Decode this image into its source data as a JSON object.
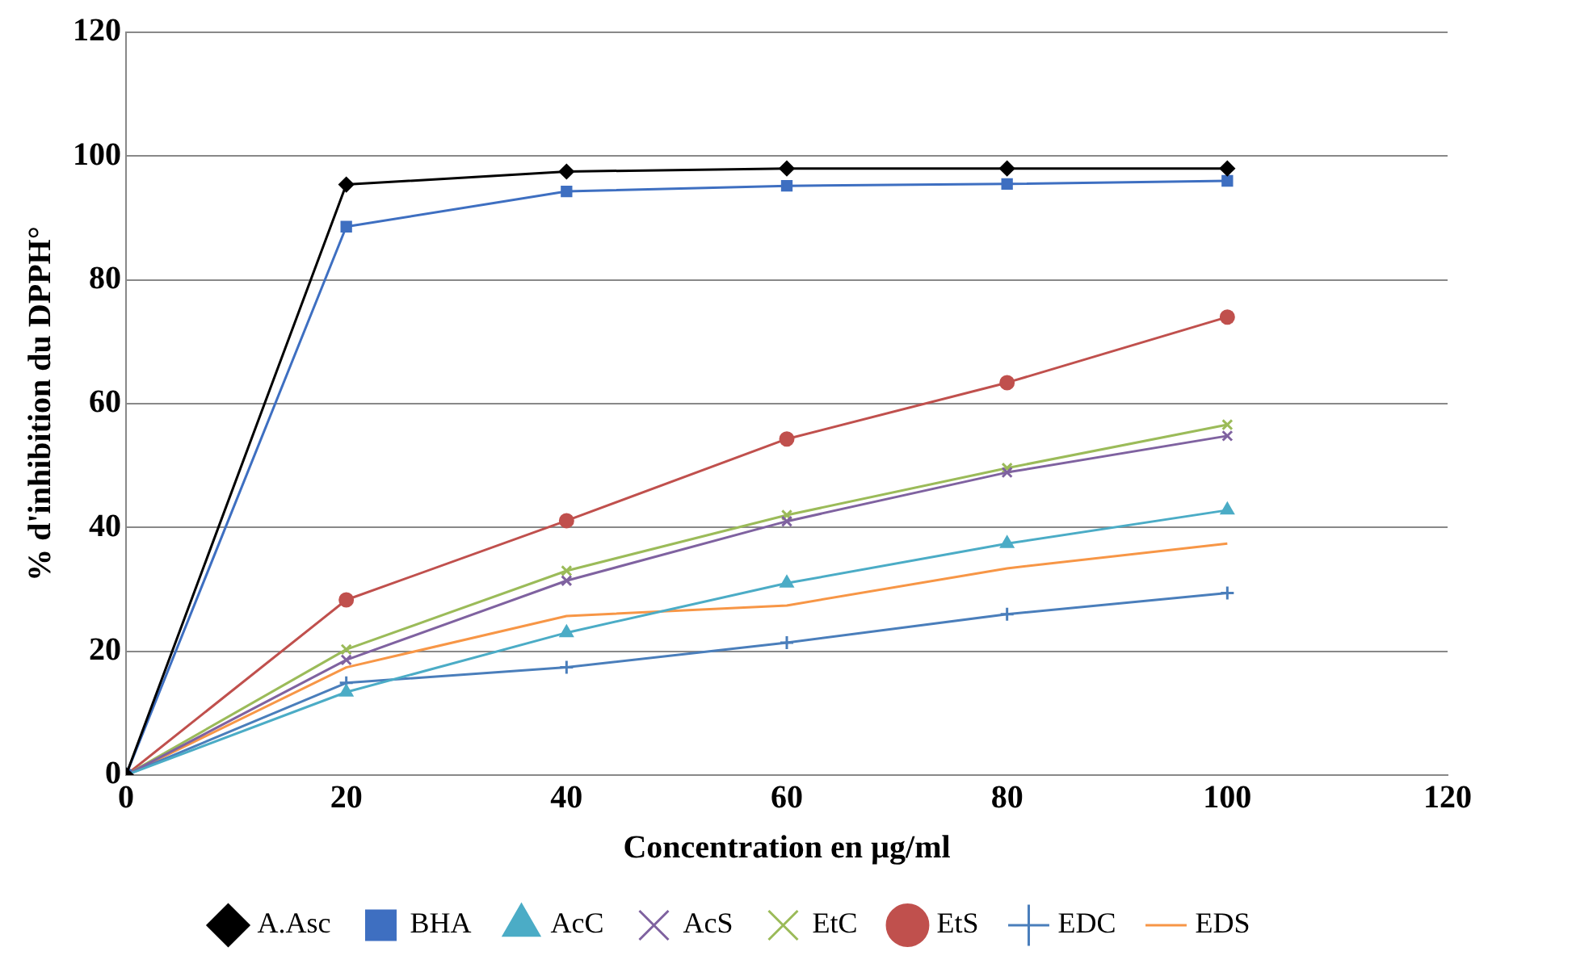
{
  "chart_data": {
    "type": "line",
    "xlabel": "Concentration en µg/ml",
    "ylabel": "% d'inhibition du DPPH°",
    "x": [
      0,
      20,
      40,
      60,
      80,
      100
    ],
    "series": [
      {
        "name": "A.Asc",
        "color": "#000000",
        "marker": "diamond",
        "values": [
          0,
          95.4,
          97.5,
          98,
          98,
          98
        ]
      },
      {
        "name": "BHA",
        "color": "#3e6fc1",
        "marker": "square",
        "values": [
          0,
          88.6,
          94.3,
          95.2,
          95.5,
          96
        ]
      },
      {
        "name": "AcC",
        "color": "#4bacc6",
        "marker": "triangle",
        "values": [
          0,
          13.4,
          23,
          31,
          37.4,
          42.8
        ]
      },
      {
        "name": "AcS",
        "color": "#7f62a0",
        "marker": "cross",
        "values": [
          0,
          18.6,
          31.4,
          41,
          48.9,
          54.8
        ]
      },
      {
        "name": "EtC",
        "color": "#9bbb59",
        "marker": "cross",
        "values": [
          0,
          20.3,
          33,
          42,
          49.6,
          56.6
        ]
      },
      {
        "name": "EtS",
        "color": "#c0504d",
        "marker": "circle",
        "values": [
          0,
          28.3,
          41.1,
          54.3,
          63.4,
          74
        ]
      },
      {
        "name": "EDC",
        "color": "#4a7ebb",
        "marker": "plus",
        "values": [
          0,
          14.9,
          17.4,
          21.4,
          26,
          29.4
        ]
      },
      {
        "name": "EDS",
        "color": "#f79646",
        "marker": "none",
        "values": [
          0,
          17.4,
          25.7,
          27.4,
          33.4,
          37.4
        ]
      }
    ],
    "xlim": [
      0,
      120
    ],
    "xticks": [
      0,
      20,
      40,
      60,
      80,
      100,
      120
    ],
    "ylim": [
      0,
      120
    ],
    "yticks": [
      0,
      20,
      40,
      60,
      80,
      100,
      120
    ],
    "grid": "y",
    "legend": "bottom",
    "line_style": "solid"
  }
}
